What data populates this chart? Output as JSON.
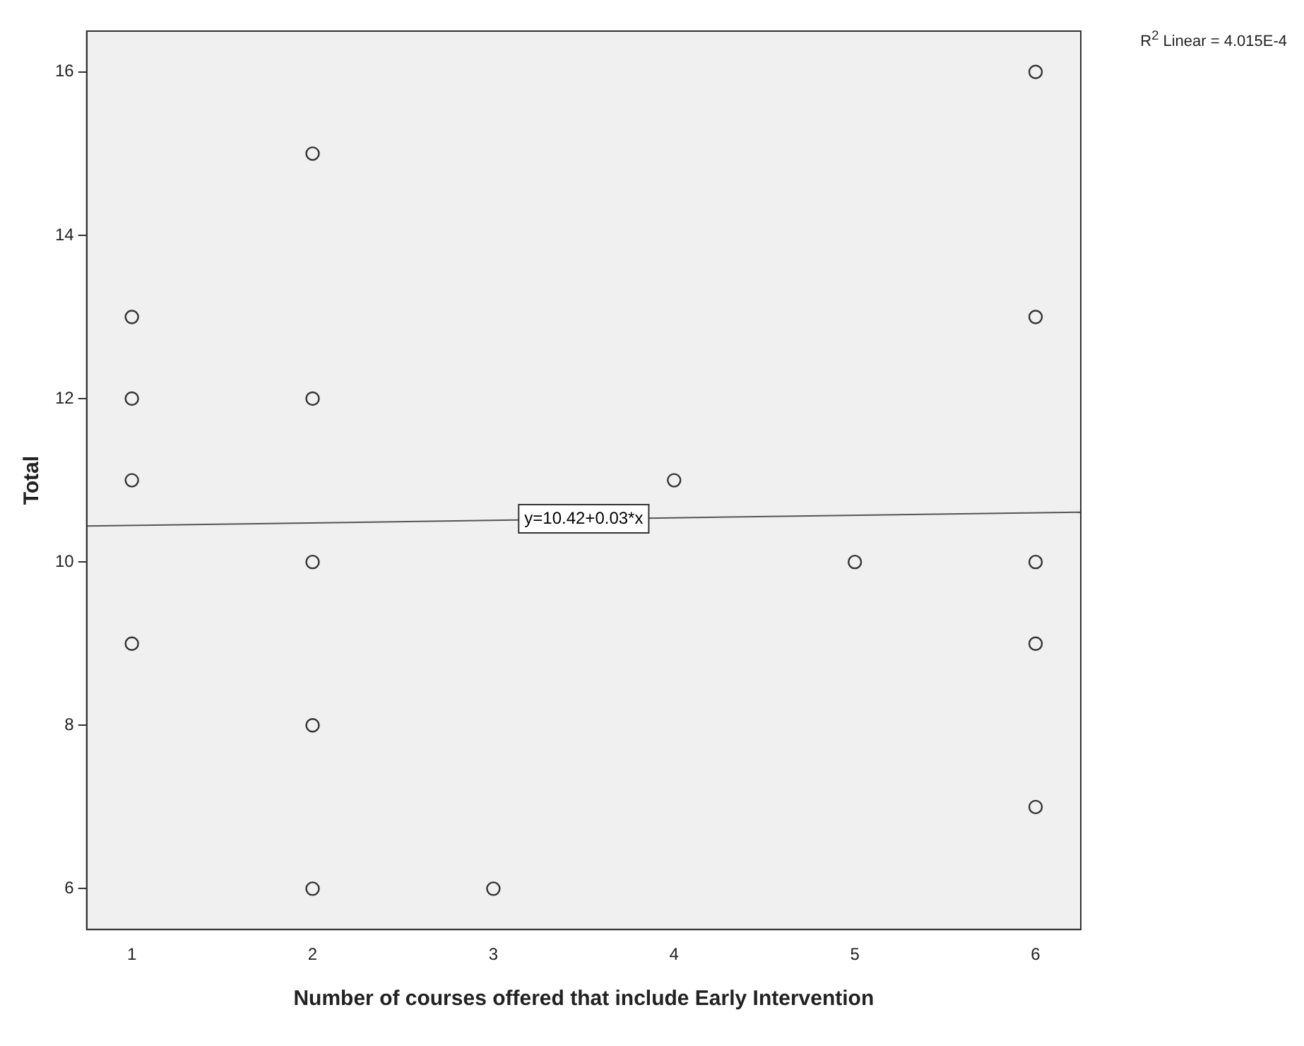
{
  "chart_data": {
    "type": "scatter",
    "xlabel": "Number of courses offered that include Early Intervention",
    "ylabel": "Total",
    "xlim": [
      0.75,
      6.25
    ],
    "ylim": [
      5.5,
      16.5
    ],
    "xticks": [
      1,
      2,
      3,
      4,
      5,
      6
    ],
    "yticks": [
      6,
      8,
      10,
      12,
      14,
      16
    ],
    "grid": false,
    "legend": false,
    "series": [
      {
        "marker": "circle",
        "color": "#333333",
        "x": [
          1,
          1,
          1,
          1,
          2,
          2,
          2,
          2,
          2,
          3,
          4,
          5,
          6,
          6,
          6,
          6,
          6
        ],
        "values": [
          13,
          12,
          11,
          9,
          15,
          12,
          10,
          8,
          6,
          6,
          11,
          10,
          16,
          13,
          10,
          9,
          7
        ]
      },
      {
        "type": "line",
        "marker": "none",
        "color": "#555555",
        "x": [
          0.75,
          6.25
        ],
        "values": [
          10.44,
          10.61
        ]
      }
    ],
    "annotations": [
      {
        "text": "y=10.42+0.03*x",
        "x": 3.5,
        "y": 10.53
      },
      "R$^{2}$ Linear = 4.015E-4"
    ]
  }
}
